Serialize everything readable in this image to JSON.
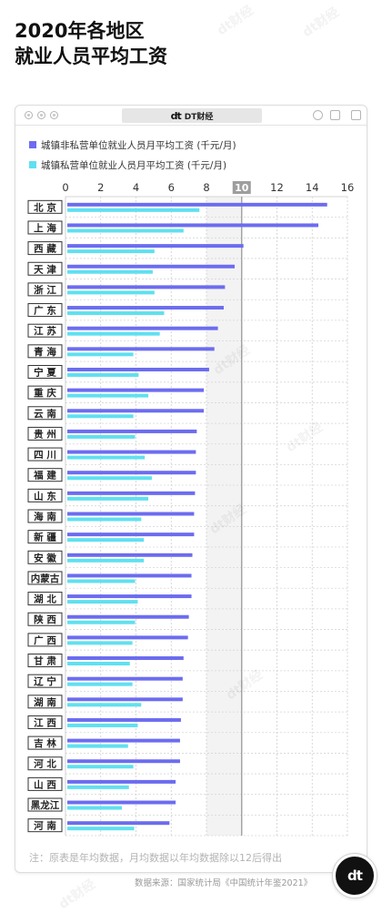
{
  "watermark": "dt财经",
  "window": {
    "tab_logo": "dt",
    "tab_label": "DT财经",
    "left_controls": [
      "close-icon",
      "minimize-icon",
      "zoom-icon"
    ],
    "right_controls": [
      "record-icon",
      "restore-icon",
      "maximize-icon"
    ]
  },
  "chart_data": {
    "type": "bar",
    "orientation": "horizontal",
    "title": [
      "2020年各地区",
      "就业人员平均工资"
    ],
    "categories": [
      "北 京",
      "上 海",
      "西 藏",
      "天 津",
      "浙 江",
      "广 东",
      "江 苏",
      "青 海",
      "宁 夏",
      "重 庆",
      "云 南",
      "贵 州",
      "四 川",
      "福 建",
      "山 东",
      "海 南",
      "新 疆",
      "安 徽",
      "内蒙古",
      "湖 北",
      "陕 西",
      "广 西",
      "甘 肃",
      "辽 宁",
      "湖 南",
      "江 西",
      "吉 林",
      "河 北",
      "山 西",
      "黑龙江",
      "河 南"
    ],
    "series": [
      {
        "name": "城镇非私营单位就业人员月平均工资 (千元/月)",
        "color": "#6c6cf0",
        "values": [
          14.85,
          14.35,
          10.1,
          9.6,
          9.05,
          8.98,
          8.65,
          8.45,
          8.15,
          7.85,
          7.85,
          7.45,
          7.4,
          7.4,
          7.35,
          7.3,
          7.3,
          7.2,
          7.15,
          7.15,
          7.0,
          6.95,
          6.7,
          6.65,
          6.65,
          6.55,
          6.5,
          6.5,
          6.25,
          6.25,
          5.9
        ]
      },
      {
        "name": "城镇私营单位就业人员月平均工资 (千元/月)",
        "color": "#60e0f0",
        "values": [
          7.6,
          6.7,
          5.05,
          4.95,
          5.05,
          5.6,
          5.35,
          3.85,
          4.15,
          4.7,
          3.85,
          3.95,
          4.5,
          4.9,
          4.7,
          4.3,
          4.45,
          4.45,
          3.95,
          4.1,
          3.95,
          3.8,
          3.65,
          3.8,
          4.3,
          4.1,
          3.55,
          3.85,
          3.6,
          3.2,
          3.9
        ]
      }
    ],
    "xlim": [
      0,
      16
    ],
    "xticks": [
      0,
      2,
      4,
      6,
      8,
      10,
      12,
      14,
      16
    ],
    "highlight_tick": 10,
    "shaded_range": [
      8,
      10
    ],
    "grid": true,
    "legend": "top-left"
  },
  "footnote": "注：原表是年均数据，月均数据以年均数据除以12后得出",
  "source": "数据来源：国家统计局《中国统计年鉴2021》",
  "corner_logo": "dt"
}
